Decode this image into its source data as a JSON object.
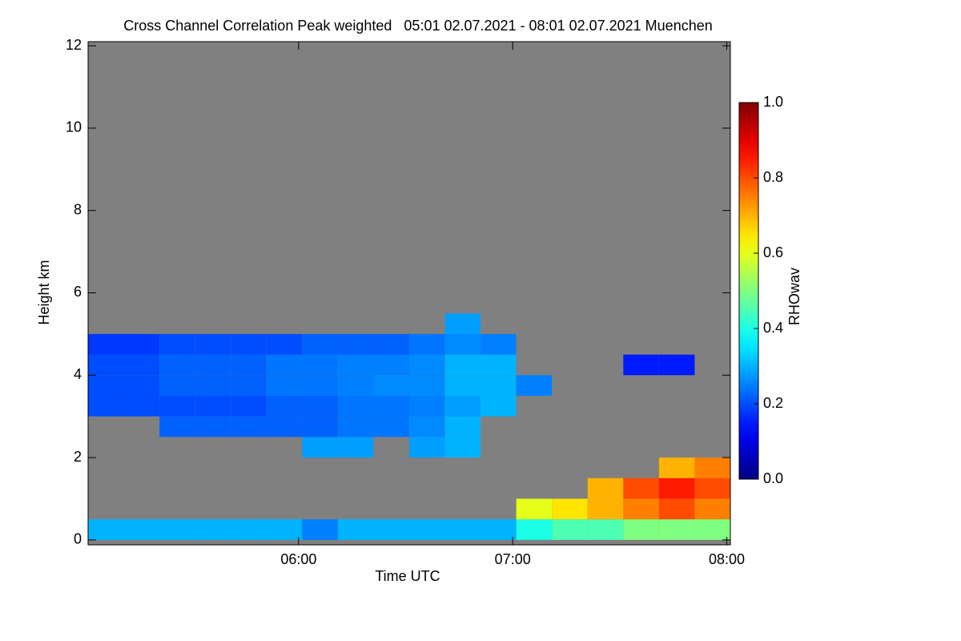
{
  "chart_data": {
    "type": "heatmap",
    "title": "Cross Channel Correlation Peak weighted   05:01 02.07.2021 - 08:01 02.07.2021 Muenchen",
    "xlabel": "Time UTC",
    "ylabel": "Height km",
    "colorbar_label": "RHOwav",
    "colormap": "jet",
    "background": "#808080",
    "xlim": [
      5.0167,
      8.0167
    ],
    "ylim": [
      -0.12,
      12.1
    ],
    "xticks": [
      {
        "value": 6,
        "label": "06:00"
      },
      {
        "value": 7,
        "label": "07:00"
      },
      {
        "value": 8,
        "label": "08:00"
      }
    ],
    "yticks": [
      0,
      2,
      4,
      6,
      8,
      10,
      12
    ],
    "clim": [
      0,
      1
    ],
    "colorbar_ticks": [
      {
        "value": 0,
        "label": "0.0"
      },
      {
        "value": 0.2,
        "label": "0.2"
      },
      {
        "value": 0.4,
        "label": "0.4"
      },
      {
        "value": 0.6,
        "label": "0.6"
      },
      {
        "value": 0.8,
        "label": "0.8"
      },
      {
        "value": 1,
        "label": "1.0"
      }
    ],
    "x_bins": [
      5.0167,
      5.1833,
      5.35,
      5.5167,
      5.6833,
      5.85,
      6.0167,
      6.1833,
      6.35,
      6.5167,
      6.6833,
      6.85,
      7.0167,
      7.1833,
      7.35,
      7.5167,
      7.6833,
      7.85,
      8.0167
    ],
    "y_bins": [
      0,
      0.5,
      1,
      1.5,
      2,
      2.5,
      3,
      3.5,
      4,
      4.5,
      5,
      5.5,
      6
    ],
    "z": [
      [
        0.3,
        0.3,
        0.3,
        0.3,
        0.3,
        0.3,
        0.25,
        0.3,
        0.3,
        0.3,
        0.3,
        0.3,
        0.4,
        0.45,
        0.45,
        0.5,
        0.5,
        0.5
      ],
      [
        null,
        null,
        null,
        null,
        null,
        null,
        null,
        null,
        null,
        null,
        null,
        null,
        0.6,
        0.65,
        0.7,
        0.75,
        0.8,
        0.75
      ],
      [
        null,
        null,
        null,
        null,
        null,
        null,
        null,
        null,
        null,
        null,
        null,
        null,
        null,
        null,
        0.7,
        0.8,
        0.85,
        0.8
      ],
      [
        null,
        null,
        null,
        null,
        null,
        null,
        null,
        null,
        null,
        null,
        null,
        null,
        null,
        null,
        null,
        null,
        0.7,
        0.75
      ],
      [
        null,
        null,
        null,
        null,
        null,
        null,
        0.28,
        0.28,
        null,
        0.28,
        0.3,
        null,
        null,
        null,
        null,
        null,
        null,
        null
      ],
      [
        null,
        null,
        0.22,
        0.22,
        0.22,
        0.22,
        0.22,
        0.24,
        0.24,
        0.26,
        0.3,
        null,
        null,
        null,
        null,
        null,
        null,
        null
      ],
      [
        0.2,
        0.2,
        0.2,
        0.2,
        0.2,
        0.22,
        0.22,
        0.24,
        0.24,
        0.25,
        0.28,
        0.3,
        null,
        null,
        null,
        null,
        null,
        null
      ],
      [
        0.2,
        0.2,
        0.22,
        0.22,
        0.22,
        0.24,
        0.24,
        0.25,
        0.26,
        0.26,
        0.3,
        0.3,
        0.25,
        null,
        null,
        null,
        null,
        null
      ],
      [
        0.2,
        0.2,
        0.22,
        0.22,
        0.22,
        0.24,
        0.24,
        0.25,
        0.25,
        0.26,
        0.3,
        0.3,
        null,
        null,
        null,
        0.15,
        0.15,
        null
      ],
      [
        0.18,
        0.18,
        0.2,
        0.2,
        0.2,
        0.2,
        0.22,
        0.22,
        0.22,
        0.24,
        0.26,
        0.25,
        null,
        null,
        null,
        null,
        null,
        null
      ],
      [
        null,
        null,
        null,
        null,
        null,
        null,
        null,
        null,
        null,
        null,
        0.28,
        null,
        null,
        null,
        null,
        null,
        null,
        null
      ],
      [
        null,
        null,
        null,
        null,
        null,
        null,
        null,
        null,
        null,
        null,
        null,
        null,
        null,
        null,
        null,
        null,
        null,
        null
      ]
    ]
  }
}
